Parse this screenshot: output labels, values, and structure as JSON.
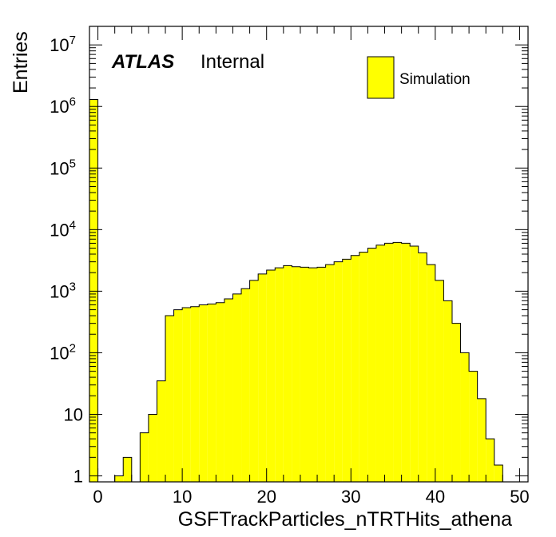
{
  "chart_data": {
    "type": "bar",
    "subtype": "histogram",
    "title": "",
    "xlabel": "GSFTrackParticles_nTRTHits_athena",
    "ylabel": "Entries",
    "xlim": [
      -1,
      51
    ],
    "ylim": [
      0.8,
      20000000
    ],
    "yscale": "log",
    "bin_width": 1,
    "x_ticks": [
      "0",
      "10",
      "20",
      "30",
      "40",
      "50"
    ],
    "y_ticks": [
      {
        "base": "1",
        "exp": ""
      },
      {
        "base": "10",
        "exp": ""
      },
      {
        "base": "10",
        "exp": "2"
      },
      {
        "base": "10",
        "exp": "3"
      },
      {
        "base": "10",
        "exp": "4"
      },
      {
        "base": "10",
        "exp": "5"
      },
      {
        "base": "10",
        "exp": "6"
      },
      {
        "base": "10",
        "exp": "7"
      }
    ],
    "fill_color": "#ffff00",
    "line_color": "#000000",
    "grid": false,
    "legend_position": "top-right",
    "series": [
      {
        "name": "Simulation",
        "bin_edges_start": -1,
        "values": [
          1300000,
          0,
          0,
          1,
          2,
          0,
          5,
          10,
          35,
          400,
          500,
          540,
          560,
          600,
          620,
          650,
          750,
          900,
          1100,
          1500,
          1900,
          2200,
          2400,
          2600,
          2500,
          2450,
          2400,
          2450,
          2700,
          3000,
          3300,
          3800,
          4300,
          5000,
          5600,
          6000,
          6200,
          6000,
          5400,
          4200,
          2700,
          1500,
          700,
          300,
          100,
          50,
          18,
          4,
          1.5,
          0,
          0,
          0
        ]
      }
    ]
  },
  "labels": {
    "atlas": "ATLAS",
    "internal": "Internal"
  }
}
